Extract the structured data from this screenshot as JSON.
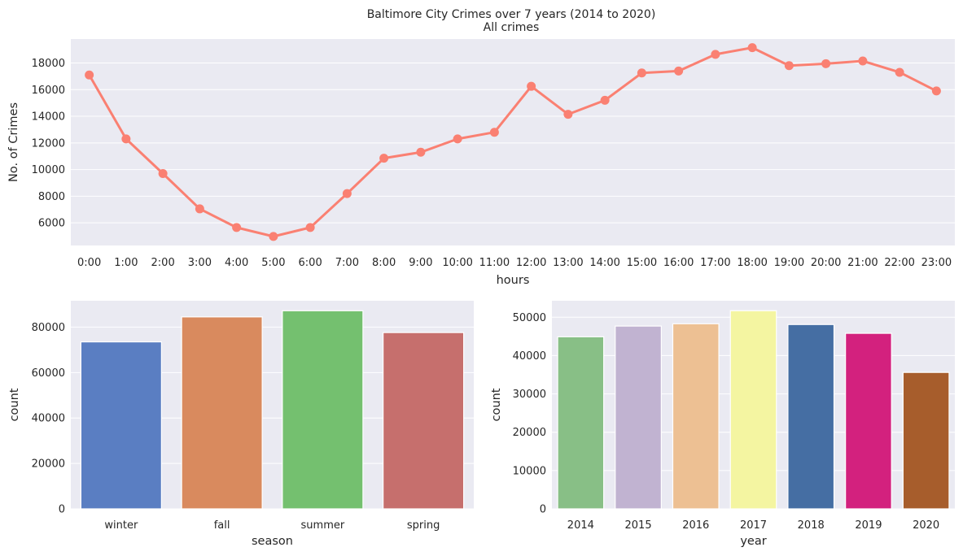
{
  "figure": {
    "title": "Baltimore City Crimes over 7 years (2014 to 2020)"
  },
  "chart_data": [
    {
      "type": "line",
      "title": "All crimes",
      "xlabel": "hours",
      "ylabel": "No. of Crimes",
      "categories": [
        "0:00",
        "1:00",
        "2:00",
        "3:00",
        "4:00",
        "5:00",
        "6:00",
        "7:00",
        "8:00",
        "9:00",
        "10:00",
        "11:00",
        "12:00",
        "13:00",
        "14:00",
        "15:00",
        "16:00",
        "17:00",
        "18:00",
        "19:00",
        "20:00",
        "21:00",
        "22:00",
        "23:00"
      ],
      "values": [
        17100,
        12300,
        9700,
        7050,
        5650,
        4980,
        5650,
        8200,
        10850,
        11300,
        12300,
        12800,
        16250,
        14150,
        15200,
        17250,
        17400,
        18650,
        19150,
        17800,
        17950,
        18150,
        17300,
        15900
      ],
      "ylim": [
        4300,
        19800
      ],
      "yticks": [
        6000,
        8000,
        10000,
        12000,
        14000,
        16000,
        18000
      ],
      "color": "#fa8072",
      "grid": true
    },
    {
      "type": "bar",
      "title": "",
      "xlabel": "season",
      "ylabel": "count",
      "categories": [
        "winter",
        "fall",
        "summer",
        "spring"
      ],
      "values": [
        73500,
        84500,
        87200,
        77600
      ],
      "colors": [
        "#5a7ec2",
        "#d98a5e",
        "#74c06f",
        "#c66f6d"
      ],
      "ylim": [
        0,
        91600
      ],
      "yticks": [
        0,
        20000,
        40000,
        60000,
        80000
      ],
      "grid": true
    },
    {
      "type": "bar",
      "title": "",
      "xlabel": "year",
      "ylabel": "count",
      "categories": [
        "2014",
        "2015",
        "2016",
        "2017",
        "2018",
        "2019",
        "2020"
      ],
      "values": [
        44900,
        47700,
        48300,
        51700,
        48100,
        45800,
        35600
      ],
      "colors": [
        "#88bf86",
        "#c1b3d1",
        "#edc093",
        "#f4f5a1",
        "#456ea3",
        "#d3217e",
        "#a75d2c"
      ],
      "ylim": [
        0,
        54300
      ],
      "yticks": [
        0,
        10000,
        20000,
        30000,
        40000,
        50000
      ],
      "grid": true
    }
  ]
}
